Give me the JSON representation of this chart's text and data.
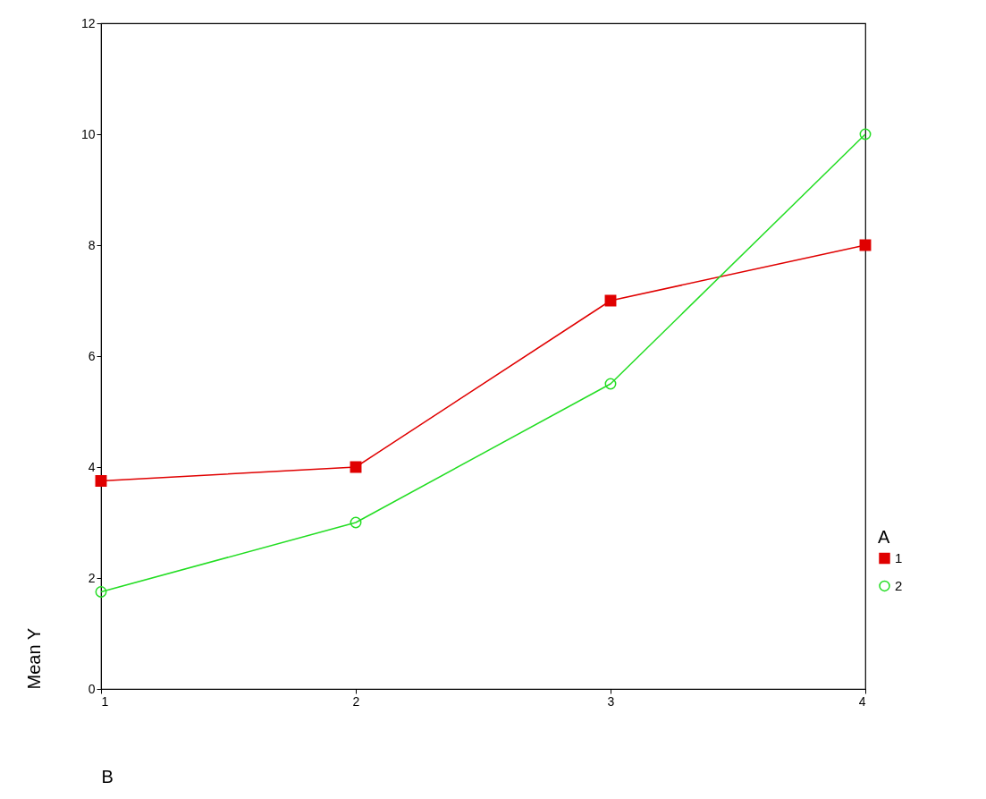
{
  "chart_data": {
    "type": "line",
    "xlabel": "B",
    "ylabel": "Mean Y",
    "legend_title": "A",
    "x": [
      1,
      2,
      3,
      4
    ],
    "xlim": [
      1,
      4
    ],
    "xticks": [
      1,
      2,
      3,
      4
    ],
    "ylim": [
      0,
      12
    ],
    "yticks": [
      0,
      2,
      4,
      6,
      8,
      10,
      12
    ],
    "grid": false,
    "legend": "right",
    "line_style": "solid",
    "series": [
      {
        "name": "1",
        "color": "#e00000",
        "marker": "square",
        "values": [
          3.75,
          4.0,
          7.0,
          8.0
        ]
      },
      {
        "name": "2",
        "color": "#22dd22",
        "marker": "circle",
        "values": [
          1.75,
          3.0,
          5.5,
          10.0
        ]
      }
    ]
  }
}
